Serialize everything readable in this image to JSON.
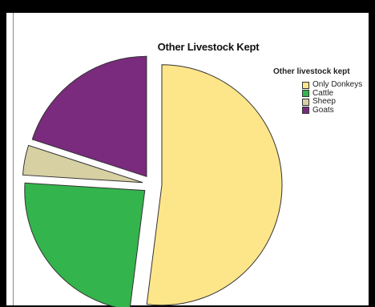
{
  "chart_data": {
    "type": "pie",
    "title": "Other Livestock Kept",
    "legend_title": "Other livestock kept",
    "legend_position": "top-right",
    "categories": [
      "Only Donkeys",
      "Cattle",
      "Sheep",
      "Goats"
    ],
    "values": [
      52,
      24,
      4,
      20
    ],
    "colors": [
      "#fde58a",
      "#34b44c",
      "#d6d0a3",
      "#7a2b7d"
    ],
    "exploded": true
  }
}
